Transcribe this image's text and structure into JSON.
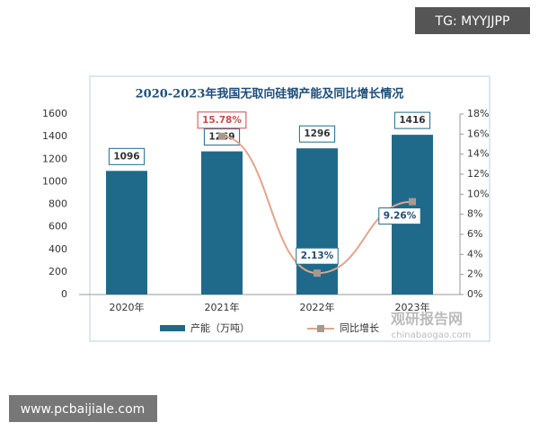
{
  "chart_data": {
    "type": "bar-line",
    "title": "2020-2023年我国无取向硅钢产能及同比增长情况",
    "categories": [
      "2020年",
      "2021年",
      "2022年",
      "2023年"
    ],
    "series": [
      {
        "name": "产能（万吨）",
        "color": "#1f6a8a",
        "values": [
          1096,
          1269,
          1296,
          1416
        ]
      },
      {
        "name": "同比增长",
        "color": "#e3a58a",
        "marker_color": "#a8998f",
        "axis": "y2",
        "values": [
          null,
          15.78,
          2.13,
          9.26
        ],
        "value_labels": [
          null,
          "15.78%",
          "2.13%",
          "9.26%"
        ]
      }
    ],
    "ylim": [
      0,
      1600
    ],
    "yticks": [
      0,
      200,
      400,
      600,
      800,
      1000,
      1200,
      1400,
      1600
    ],
    "y2lim": [
      0,
      18
    ],
    "y2ticks": [
      {
        "value": 0,
        "label": "0%"
      },
      {
        "value": 2,
        "label": "2%"
      },
      {
        "value": 4,
        "label": "4%"
      },
      {
        "value": 6,
        "label": "6%"
      },
      {
        "value": 8,
        "label": "8%"
      },
      {
        "value": 10,
        "label": "10%"
      },
      {
        "value": 12,
        "label": "12%"
      },
      {
        "value": 14,
        "label": "14%"
      },
      {
        "value": 16,
        "label": "16%"
      },
      {
        "value": 18,
        "label": "18%"
      }
    ],
    "grid": false,
    "legend": "bottom"
  },
  "overlay": {
    "tag": "TG: MYYJJPP",
    "site": "www.pcbaijiale.com",
    "watermark": "观研报告网",
    "watermark_url": "chinabaogao.com"
  }
}
